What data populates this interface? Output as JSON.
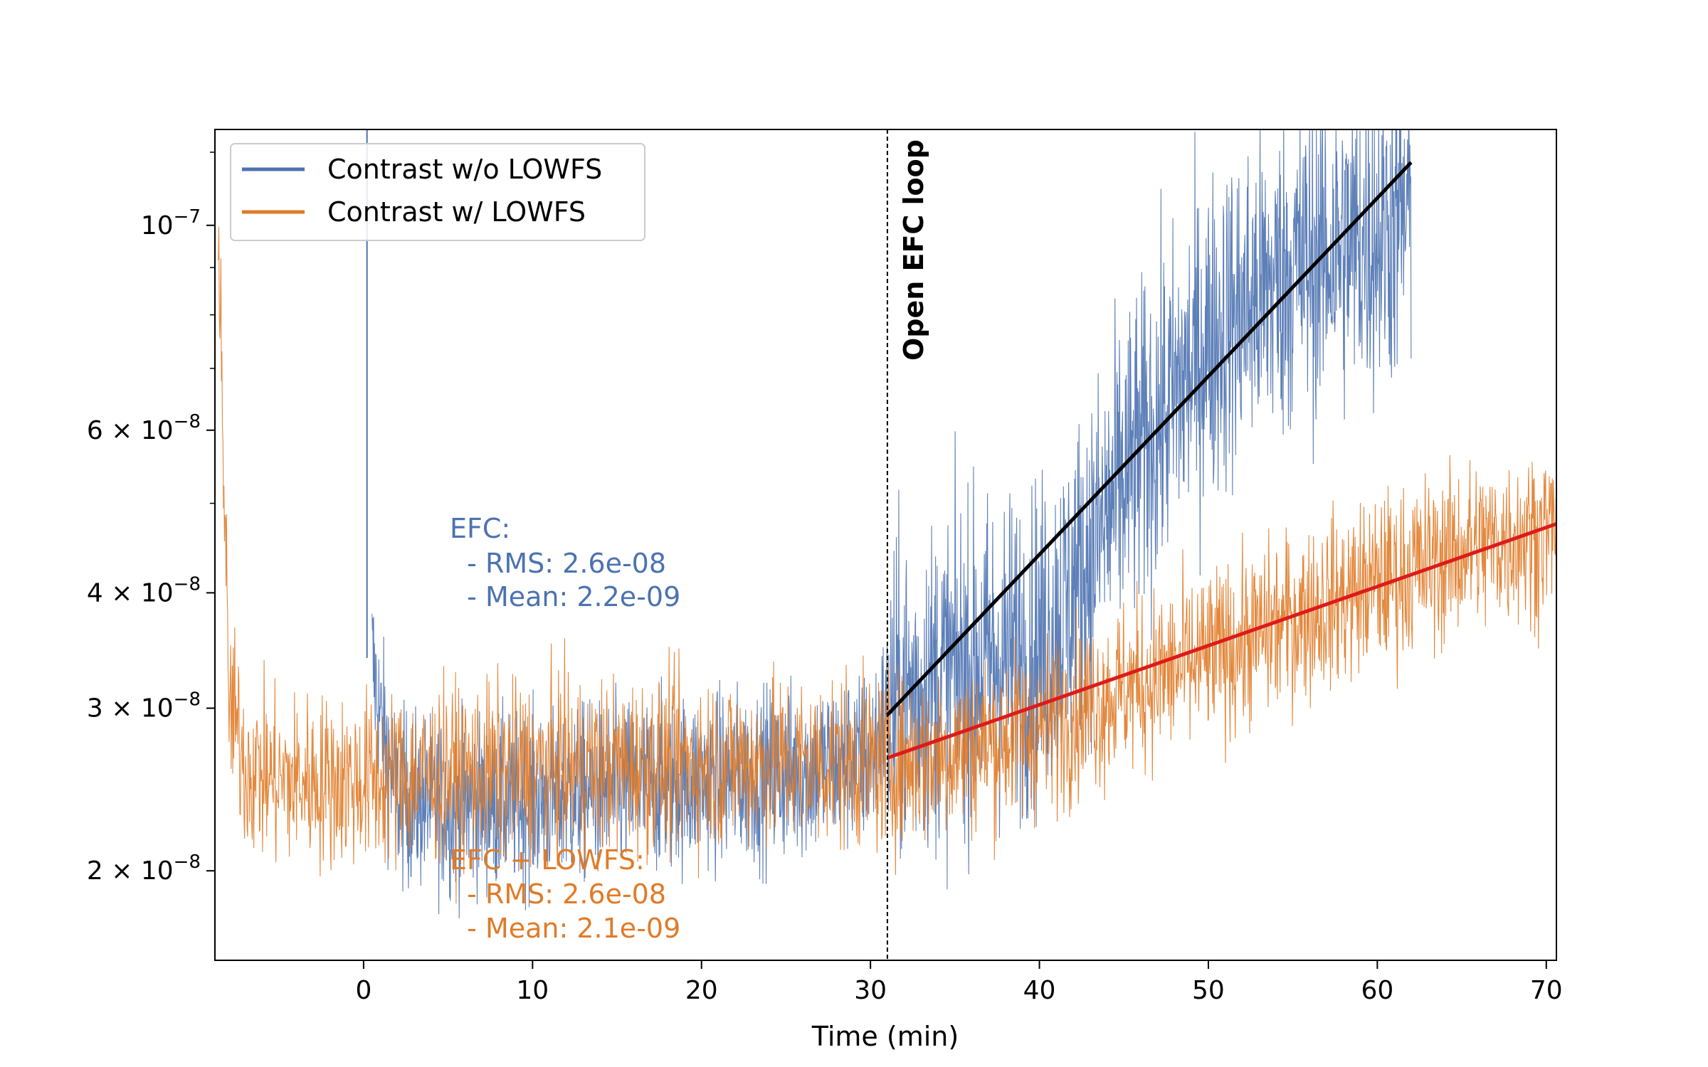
{
  "chart_data": {
    "type": "line",
    "xlabel": "Time (min)",
    "ylabel": "",
    "yscale": "log",
    "xlim": [
      -8.8,
      70.6
    ],
    "ylim": [
      1.6e-08,
      1.27e-07
    ],
    "x_ticks": [
      {
        "value": 0,
        "label": "0"
      },
      {
        "value": 10,
        "label": "10"
      },
      {
        "value": 20,
        "label": "20"
      },
      {
        "value": 30,
        "label": "30"
      },
      {
        "value": 40,
        "label": "40"
      },
      {
        "value": 50,
        "label": "50"
      },
      {
        "value": 60,
        "label": "60"
      },
      {
        "value": 70,
        "label": "70"
      }
    ],
    "y_ticks": [
      {
        "value": 1e-07,
        "label": "10",
        "sup": "−7"
      },
      {
        "value": 6e-08,
        "label": "6 × 10",
        "sup": "−8"
      },
      {
        "value": 4e-08,
        "label": "4 × 10",
        "sup": "−8"
      },
      {
        "value": 3e-08,
        "label": "3 × 10",
        "sup": "−8"
      },
      {
        "value": 2e-08,
        "label": "2 × 10",
        "sup": "−8"
      }
    ],
    "series": [
      {
        "name": "Contrast w/o LOWFS",
        "color": "#4c72b0",
        "x": [
          0.5,
          1,
          2,
          5,
          10,
          15,
          20,
          25,
          30,
          31,
          35,
          40,
          42,
          45,
          50,
          55,
          60,
          62
        ],
        "y": [
          3.4e-08,
          2.9e-08,
          2.4e-08,
          2.35e-08,
          2.38e-08,
          2.45e-08,
          2.5e-08,
          2.55e-08,
          2.65e-08,
          3e-08,
          3.3e-08,
          3.5e-08,
          4e-08,
          5.3e-08,
          7.5e-08,
          9e-08,
          9.8e-08,
          1.03e-07
        ],
        "spike": {
          "x": 0.2,
          "y": 1.27e-07
        }
      },
      {
        "name": "Contrast w/ LOWFS",
        "color": "#e07b28",
        "x": [
          -8.6,
          -8,
          -7,
          -5,
          0,
          5,
          10,
          15,
          20,
          25,
          30,
          31,
          35,
          40,
          45,
          50,
          55,
          60,
          65,
          70.6
        ],
        "y": [
          1.05e-07,
          3.1e-08,
          2.6e-08,
          2.5e-08,
          2.5e-08,
          2.55e-08,
          2.58e-08,
          2.6e-08,
          2.62e-08,
          2.62e-08,
          2.62e-08,
          2.6e-08,
          2.7e-08,
          2.85e-08,
          3.15e-08,
          3.4e-08,
          3.75e-08,
          4.1e-08,
          4.45e-08,
          4.7e-08
        ]
      }
    ],
    "fit_lines": [
      {
        "name": "fit-without-lowfs",
        "color": "#000000",
        "x": [
          31,
          62
        ],
        "y": [
          2.95e-08,
          1.17e-07
        ]
      },
      {
        "name": "fit-with-lowfs",
        "color": "#dd1b1b",
        "x": [
          31,
          70.6
        ],
        "y": [
          2.65e-08,
          4.75e-08
        ]
      }
    ],
    "vertical_line": {
      "x": 31,
      "label": "Open EFC loop"
    },
    "legend": {
      "position": "top-left"
    },
    "annotations": {
      "efc": {
        "color": "#4c72b0",
        "lines": [
          "EFC:",
          "  - RMS: 2.6e-08",
          "  - Mean: 2.2e-09"
        ]
      },
      "efc_lowfs": {
        "color": "#e07b28",
        "lines": [
          "EFC + LOWFS:",
          "  - RMS: 2.6e-08",
          "  - Mean: 2.1e-09"
        ]
      }
    }
  }
}
